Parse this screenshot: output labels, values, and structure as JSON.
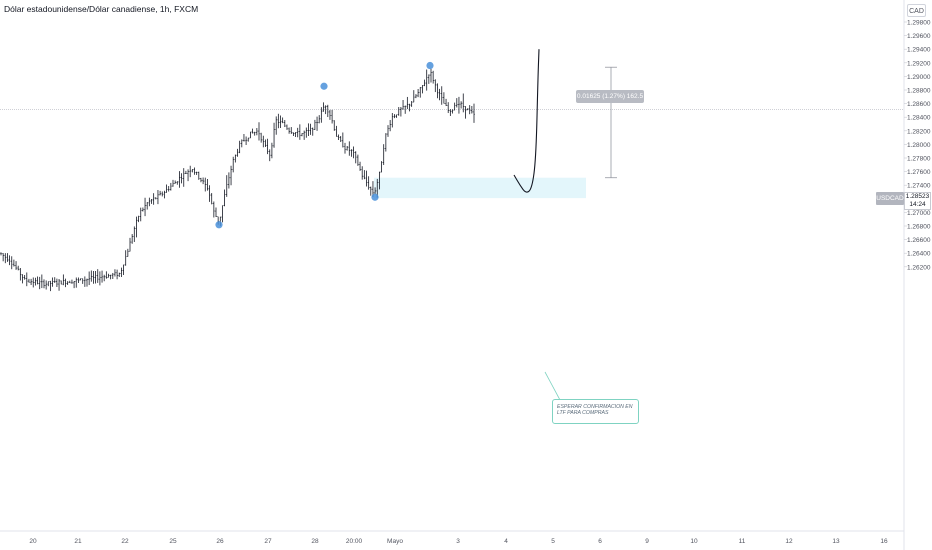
{
  "header": {
    "title": "Dólar estadounidense/Dólar canadiense, 1h, FXCM"
  },
  "axis": {
    "currency_label": "CAD"
  },
  "price_tag": {
    "symbol": "USDCAD",
    "price": "1.28523",
    "countdown": "14:24"
  },
  "measure": {
    "label": "0.01625 (1.27%) 162.5",
    "top_price": 1.29135,
    "bottom_price": 1.2751
  },
  "annotation": {
    "text": "ESPERAR CONFIRMACION EN LTF PARA COMPRAS"
  },
  "colors": {
    "candle": "#131722",
    "marker": "#4a90d9",
    "zone": "#e3f6fb",
    "callout_border": "#7fd3c2"
  },
  "chart_data": {
    "type": "bar",
    "x_ticks": [
      "20",
      "21",
      "22",
      "25",
      "26",
      "27",
      "28",
      "20:00",
      "Mayo",
      "3",
      "4",
      "5",
      "6",
      "9",
      "10",
      "11",
      "12",
      "13",
      "16"
    ],
    "y_ticks": [
      "1.29800",
      "1.29600",
      "1.29400",
      "1.29200",
      "1.29000",
      "1.28800",
      "1.28600",
      "1.28400",
      "1.28200",
      "1.28000",
      "1.27800",
      "1.27600",
      "1.27400",
      "1.27200",
      "1.27000",
      "1.26800",
      "1.26600",
      "1.26400",
      "1.26200"
    ],
    "ylim": [
      1.261,
      1.299
    ],
    "price_path": [
      [
        0,
        1.264
      ],
      [
        10,
        1.263
      ],
      [
        25,
        1.26
      ],
      [
        45,
        1.2595
      ],
      [
        80,
        1.26
      ],
      [
        120,
        1.261
      ],
      [
        128,
        1.2645
      ],
      [
        135,
        1.268
      ],
      [
        140,
        1.27
      ],
      [
        148,
        1.2715
      ],
      [
        160,
        1.2725
      ],
      [
        172,
        1.274
      ],
      [
        183,
        1.2755
      ],
      [
        192,
        1.2765
      ],
      [
        200,
        1.275
      ],
      [
        208,
        1.2735
      ],
      [
        214,
        1.27
      ],
      [
        219,
        1.2685
      ],
      [
        226,
        1.2735
      ],
      [
        233,
        1.2775
      ],
      [
        240,
        1.28
      ],
      [
        250,
        1.2815
      ],
      [
        258,
        1.282
      ],
      [
        264,
        1.28
      ],
      [
        270,
        1.2785
      ],
      [
        276,
        1.2835
      ],
      [
        283,
        1.283
      ],
      [
        290,
        1.282
      ],
      [
        300,
        1.2815
      ],
      [
        310,
        1.282
      ],
      [
        318,
        1.2835
      ],
      [
        325,
        1.286
      ],
      [
        331,
        1.284
      ],
      [
        337,
        1.281
      ],
      [
        345,
        1.2795
      ],
      [
        352,
        1.279
      ],
      [
        357,
        1.2775
      ],
      [
        362,
        1.2755
      ],
      [
        368,
        1.274
      ],
      [
        374,
        1.2727
      ],
      [
        380,
        1.276
      ],
      [
        385,
        1.281
      ],
      [
        392,
        1.284
      ],
      [
        400,
        1.285
      ],
      [
        410,
        1.286
      ],
      [
        418,
        1.2875
      ],
      [
        424,
        1.289
      ],
      [
        430,
        1.2908
      ],
      [
        437,
        1.288
      ],
      [
        444,
        1.286
      ],
      [
        450,
        1.2845
      ],
      [
        456,
        1.2862
      ],
      [
        462,
        1.2858
      ],
      [
        468,
        1.285
      ],
      [
        474,
        1.2843
      ]
    ],
    "markers": [
      {
        "x": 219,
        "price": 1.26818
      },
      {
        "x": 324,
        "price": 1.28855
      },
      {
        "x": 375,
        "price": 1.27223
      },
      {
        "x": 430,
        "price": 1.2916
      }
    ],
    "demand_zone": {
      "x_start": 374,
      "x_end": 586,
      "price_top": 1.2751,
      "price_bottom": 1.2721
    },
    "projection": [
      [
        514,
        1.2755
      ],
      [
        520,
        1.274
      ],
      [
        526,
        1.27275
      ],
      [
        532,
        1.2735
      ],
      [
        536,
        1.278
      ],
      [
        538,
        1.29
      ],
      [
        539,
        1.294
      ]
    ],
    "current_price": 1.28523
  }
}
